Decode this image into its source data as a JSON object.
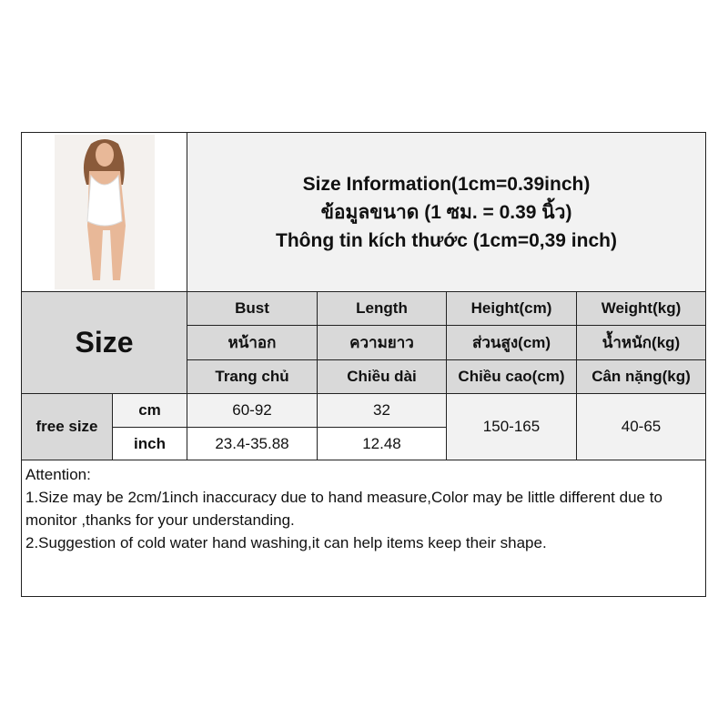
{
  "title": {
    "line1": "Size Information(1cm=0.39inch)",
    "line2": "ข้อมูลขนาด (1 ซม. = 0.39 นิ้ว)",
    "line3": "Thông tin kích thước (1cm=0,39 inch)"
  },
  "size_label": "Size",
  "headers": [
    {
      "en": "Bust",
      "th": "หน้าอก",
      "vi": "Trang chủ"
    },
    {
      "en": "Length",
      "th": "ความยาว",
      "vi": "Chiều dài"
    },
    {
      "en": "Height(cm)",
      "th": "ส่วนสูง(cm)",
      "vi": "Chiều cao(cm)"
    },
    {
      "en": "Weight(kg)",
      "th": "น้ำหนัก(kg)",
      "vi": "Cân nặng(kg)"
    }
  ],
  "row": {
    "name": "free size",
    "unit_cm": "cm",
    "unit_inch": "inch",
    "bust_cm": "60-92",
    "bust_inch": "23.4-35.88",
    "length_cm": "32",
    "length_inch": "12.48",
    "height": "150-165",
    "weight": "40-65"
  },
  "attention": {
    "heading": "Attention:",
    "line1": "1.Size may be 2cm/1inch inaccuracy due to hand measure,Color may be little different due to monitor ,thanks for your understanding.",
    "line2": "2.Suggestion of cold water hand washing,it can help items keep their shape."
  }
}
